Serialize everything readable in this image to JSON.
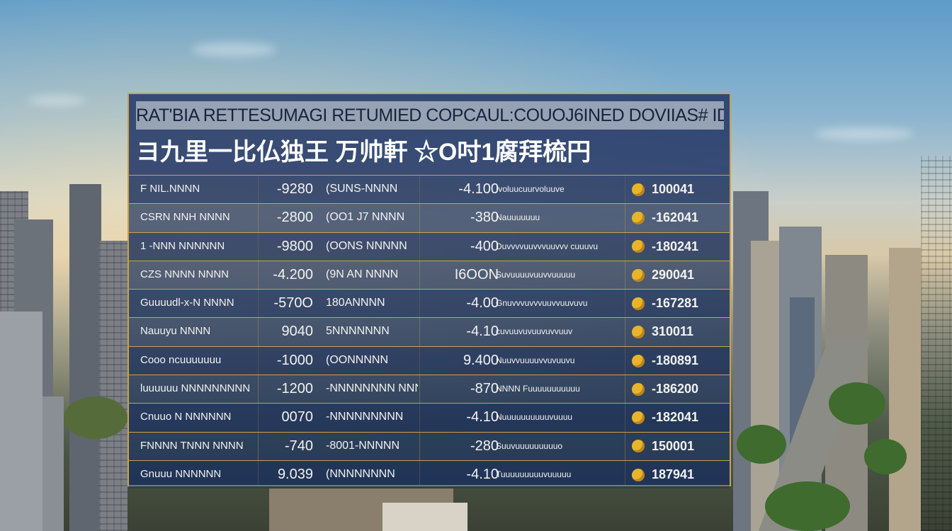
{
  "header": {
    "title_line1": "RAT'BIA RETTESUMAGI RETUMIED COPCAUL:COUOJ6INED DOVIIAS# IDOUN",
    "title_line2": "ヨ九里一比仏独王 万帅軒 ☆O吋1腐拜梳円"
  },
  "table": {
    "rows": [
      {
        "name": "F NIL.NNNN",
        "value": "-9280",
        "code": "(SUNS-NNNN",
        "delta": "-4.100",
        "desc": "Ivoluucuurvoluuve",
        "icon": "coin-icon",
        "total": "100041"
      },
      {
        "name": "CSRN NNH NNNN",
        "value": "-2800",
        "code": "(OO1 J7 NNNN",
        "delta": "-380",
        "desc": "Nauuuuuuu",
        "icon": "coin-icon",
        "total": "-162041"
      },
      {
        "name": "1 -NNN NNNNNN",
        "value": "-9800",
        "code": "(OONS NNNNN",
        "delta": "-400",
        "desc": "Duvvvvuuvvvuuvvv cuuuvu",
        "icon": "coin-icon",
        "total": "-180241"
      },
      {
        "name": "CZS NNNN NNNN",
        "value": "-4.200",
        "code": "(9N AN NNNN",
        "delta": "I6OON",
        "desc": "Suvuuuuvuuvvuuuuu",
        "icon": "coin-icon",
        "total": "290041"
      },
      {
        "name": "Guuuudl-x-N NNNN",
        "value": "-570O",
        "code": "180ANNNN",
        "delta": "-4.00",
        "desc": "Gnuvvvuvvvuuvvuuvuvu",
        "icon": "coin-icon",
        "total": "-167281"
      },
      {
        "name": "Nauuyu NNNN",
        "value": "9040",
        "code": "5NNNNNNN",
        "delta": "-4.10",
        "desc": "cuvuuvuvuuvuvvuuv",
        "icon": "coin-icon",
        "total": "310011"
      },
      {
        "name": "Cooo ncuuuuuuu",
        "value": "-1000",
        "code": "(OONNNNN",
        "delta": "9.400",
        "desc": "Nuuvvuuuuvvuvuuvu",
        "icon": "coin-icon",
        "total": "-180891"
      },
      {
        "name": "luuuuuu NNNNNNNNN",
        "value": "-1200",
        "code": "-NNNNNNNN NNN",
        "delta": "-870",
        "desc": "NNNN Fuuuuuuuuuuu",
        "icon": "coin-icon",
        "total": "-186200"
      },
      {
        "name": "Cnuuo N NNNNNN",
        "value": "0070",
        "code": "-NNNNNNNNN",
        "delta": "-4.10",
        "desc": "Nuuuuuuuuuuvuuuu",
        "icon": "coin-icon",
        "total": "-182041"
      },
      {
        "name": "FNNNN TNNN NNNN",
        "value": "-740",
        "code": "-8001-NNNNN",
        "delta": "-280",
        "desc": "Suuvuuuuuuuuuo",
        "icon": "coin-icon",
        "total": "150001"
      },
      {
        "name": "Gnuuu NNNNNN",
        "value": "9.039",
        "code": "(NNNNNNNN",
        "delta": "-4.10",
        "desc": "Tuuuuuuuuuvuuuuu",
        "icon": "coin-icon",
        "total": "187941"
      }
    ]
  }
}
